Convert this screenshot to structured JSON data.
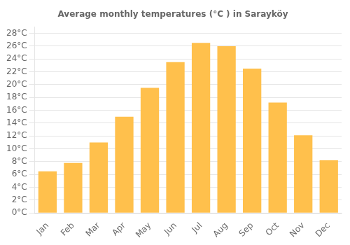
{
  "chart_data": {
    "type": "bar",
    "title": "Average monthly temperatures (°C ) in Sarayköy",
    "categories": [
      "Jan",
      "Feb",
      "Mar",
      "Apr",
      "May",
      "Jun",
      "Jul",
      "Aug",
      "Sep",
      "Oct",
      "Nov",
      "Dec"
    ],
    "values": [
      6.5,
      7.8,
      11.0,
      15.0,
      19.5,
      23.5,
      26.5,
      26.0,
      22.5,
      17.2,
      12.1,
      8.2
    ],
    "color": "#FFC04C",
    "ylim": [
      0,
      29
    ],
    "yticks": [
      {
        "value": 0,
        "label": "0°C"
      },
      {
        "value": 2,
        "label": "2°C"
      },
      {
        "value": 4,
        "label": "4°C"
      },
      {
        "value": 6,
        "label": "6°C"
      },
      {
        "value": 8,
        "label": "8°C"
      },
      {
        "value": 10,
        "label": "10°C"
      },
      {
        "value": 12,
        "label": "12°C"
      },
      {
        "value": 14,
        "label": "14°C"
      },
      {
        "value": 16,
        "label": "16°C"
      },
      {
        "value": 18,
        "label": "18°C"
      },
      {
        "value": 20,
        "label": "20°C"
      },
      {
        "value": 22,
        "label": "22°C"
      },
      {
        "value": 24,
        "label": "24°C"
      },
      {
        "value": 26,
        "label": "26°C"
      },
      {
        "value": 28,
        "label": "28°C"
      }
    ],
    "grid": true
  }
}
